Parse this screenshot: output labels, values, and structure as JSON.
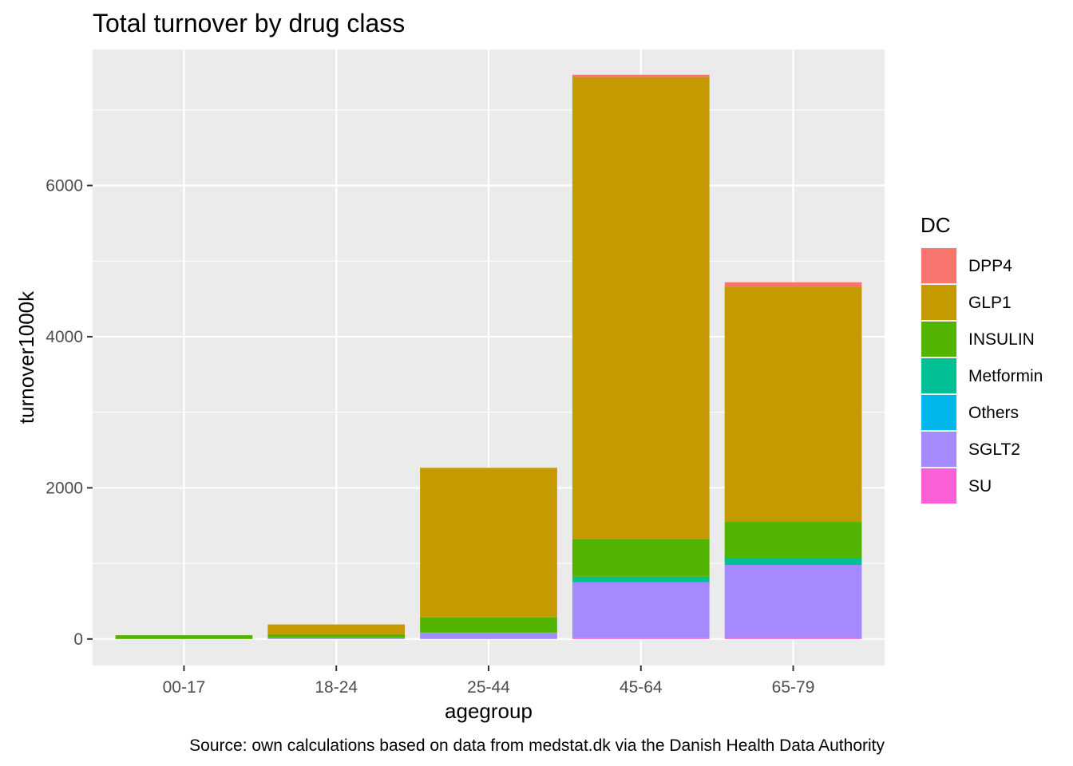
{
  "chart_data": {
    "type": "bar",
    "stacked": true,
    "title": "Total turnover by drug class",
    "xlabel": "agegroup",
    "ylabel": "turnover1000k",
    "caption": "Source: own calculations based on data from medstat.dk via the Danish Health Data Authority",
    "categories": [
      "00-17",
      "18-24",
      "25-44",
      "45-64",
      "65-79"
    ],
    "ylim": [
      -350,
      7800
    ],
    "yticks": [
      0,
      2000,
      4000,
      6000
    ],
    "grid": true,
    "legend": {
      "title": "DC",
      "position": "right"
    },
    "series": [
      {
        "name": "DPP4",
        "color": "#F8766D",
        "values": [
          0,
          0,
          0,
          30,
          60
        ]
      },
      {
        "name": "GLP1",
        "color": "#C49A00",
        "values": [
          0,
          130,
          1980,
          6110,
          3110
        ]
      },
      {
        "name": "INSULIN",
        "color": "#53B400",
        "values": [
          50,
          45,
          200,
          500,
          480
        ]
      },
      {
        "name": "Metformin",
        "color": "#00C094",
        "values": [
          0,
          3,
          5,
          75,
          90
        ]
      },
      {
        "name": "Others",
        "color": "#00B6EB",
        "values": [
          0,
          0,
          0,
          0,
          0
        ]
      },
      {
        "name": "SGLT2",
        "color": "#A58AFF",
        "values": [
          0,
          15,
          80,
          740,
          960
        ]
      },
      {
        "name": "SU",
        "color": "#FB61D7",
        "values": [
          0,
          0,
          0,
          10,
          20
        ]
      }
    ]
  }
}
